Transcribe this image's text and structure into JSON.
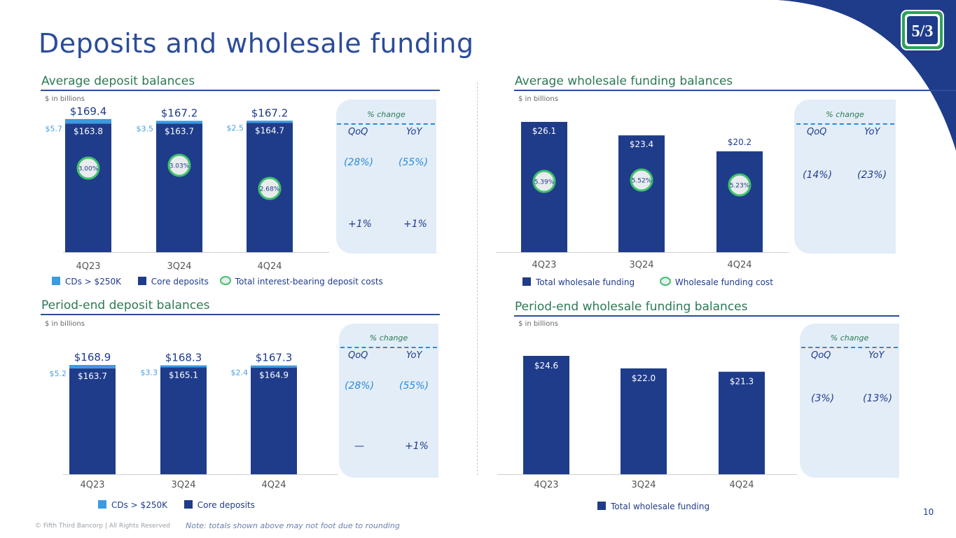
{
  "title": "Deposits and wholesale funding",
  "footer": "© Fifth Third Bancorp | All Rights Reserved",
  "note": "Note: totals shown above may not foot due to rounding",
  "page_number": "10",
  "colors": {
    "core": "#1f3c8a",
    "cds": "#3a9be0",
    "accent_green": "#3ec26a",
    "title_blue": "#2b4c9b"
  },
  "sections": {
    "avg_deposit": {
      "title": "Average deposit balances",
      "unit": "$ in billions",
      "pct_change": {
        "title": "% change",
        "qoq_label": "QoQ",
        "yoy_label": "YoY",
        "row1": {
          "qoq": "(28%)",
          "yoy": "(55%)"
        },
        "row2": {
          "qoq": "+1%",
          "yoy": "+1%"
        }
      },
      "legend": {
        "cds": "CDs > $250K",
        "core": "Core deposits",
        "cost": "Total interest-bearing deposit costs"
      }
    },
    "avg_wholesale": {
      "title": "Average wholesale funding balances",
      "unit": "$ in billions",
      "pct_change": {
        "title": "% change",
        "qoq_label": "QoQ",
        "yoy_label": "YoY",
        "row1": {
          "qoq": "(14%)",
          "yoy": "(23%)"
        }
      },
      "legend": {
        "total": "Total wholesale funding",
        "cost": "Wholesale funding cost"
      }
    },
    "pe_deposit": {
      "title": "Period-end deposit balances",
      "unit": "$ in billions",
      "pct_change": {
        "title": "% change",
        "qoq_label": "QoQ",
        "yoy_label": "YoY",
        "row1": {
          "qoq": "(28%)",
          "yoy": "(55%)"
        },
        "row2": {
          "qoq": "—",
          "yoy": "+1%"
        }
      },
      "legend": {
        "cds": "CDs > $250K",
        "core": "Core deposits"
      }
    },
    "pe_wholesale": {
      "title": "Period-end wholesale funding balances",
      "unit": "$ in billions",
      "pct_change": {
        "title": "% change",
        "qoq_label": "QoQ",
        "yoy_label": "YoY",
        "row1": {
          "qoq": "(3%)",
          "yoy": "(13%)"
        }
      },
      "legend": {
        "total": "Total wholesale funding"
      }
    }
  },
  "chart_data": [
    {
      "id": "avg_deposit",
      "type": "bar",
      "stacked": true,
      "title": "Average deposit balances",
      "ylabel": "$ in billions",
      "categories": [
        "4Q23",
        "3Q24",
        "4Q24"
      ],
      "series": [
        {
          "name": "Core deposits",
          "values": [
            163.8,
            163.7,
            164.7
          ],
          "labels": [
            "$163.8",
            "$163.7",
            "$164.7"
          ]
        },
        {
          "name": "CDs > $250K",
          "values": [
            5.7,
            3.5,
            2.5
          ],
          "labels": [
            "$5.7",
            "$3.5",
            "$2.5"
          ]
        }
      ],
      "totals": [
        169.4,
        167.2,
        167.2
      ],
      "total_labels": [
        "$169.4",
        "$167.2",
        "$167.2"
      ],
      "cost": {
        "name": "Total interest-bearing deposit costs",
        "values": [
          3.0,
          3.03,
          2.68
        ],
        "labels": [
          "3.00%",
          "3.03%",
          "2.68%"
        ]
      }
    },
    {
      "id": "avg_wholesale",
      "type": "bar",
      "title": "Average wholesale funding balances",
      "ylabel": "$ in billions",
      "categories": [
        "4Q23",
        "3Q24",
        "4Q24"
      ],
      "series": [
        {
          "name": "Total wholesale funding",
          "values": [
            26.1,
            23.4,
            20.2
          ],
          "labels": [
            "$26.1",
            "$23.4",
            "$20.2"
          ]
        }
      ],
      "cost": {
        "name": "Wholesale funding cost",
        "values": [
          5.39,
          5.52,
          5.23
        ],
        "labels": [
          "5.39%",
          "5.52%",
          "5.23%"
        ]
      }
    },
    {
      "id": "pe_deposit",
      "type": "bar",
      "stacked": true,
      "title": "Period-end deposit balances",
      "ylabel": "$ in billions",
      "categories": [
        "4Q23",
        "3Q24",
        "4Q24"
      ],
      "series": [
        {
          "name": "Core deposits",
          "values": [
            163.7,
            165.1,
            164.9
          ],
          "labels": [
            "$163.7",
            "$165.1",
            "$164.9"
          ]
        },
        {
          "name": "CDs > $250K",
          "values": [
            5.2,
            3.3,
            2.4
          ],
          "labels": [
            "$5.2",
            "$3.3",
            "$2.4"
          ]
        }
      ],
      "totals": [
        168.9,
        168.3,
        167.3
      ],
      "total_labels": [
        "$168.9",
        "$168.3",
        "$167.3"
      ]
    },
    {
      "id": "pe_wholesale",
      "type": "bar",
      "title": "Period-end wholesale funding balances",
      "ylabel": "$ in billions",
      "categories": [
        "4Q23",
        "3Q24",
        "4Q24"
      ],
      "series": [
        {
          "name": "Total wholesale funding",
          "values": [
            24.6,
            22.0,
            21.3
          ],
          "labels": [
            "$24.6",
            "$22.0",
            "$21.3"
          ]
        }
      ]
    }
  ]
}
